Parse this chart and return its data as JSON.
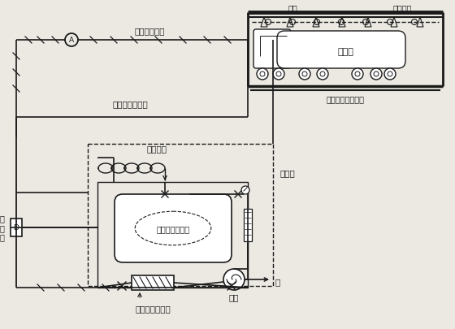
{
  "bg_color": "#ece9e3",
  "line_color": "#1a1a1a",
  "fig_width": 5.6,
  "fig_height": 4.06,
  "dpi": 100,
  "labels": {
    "signal_amp": "信号放大装置",
    "foam_mix_line": "泡沫混合液管线",
    "aux_hose": "辅助软管",
    "bladder_tank": "囊式泡沫液储罐",
    "rain_valve": "雨\n淋\n阀",
    "foam_mixer": "泡沫比例混合器",
    "foam_station": "泡沫站",
    "water": "水",
    "water_pump": "水泵",
    "detector": "探头",
    "foam_nozzle": "泡沫喷头",
    "ground_nozzle": "落地雾化泡沫喷头",
    "oil_tanker": "油槽车"
  }
}
